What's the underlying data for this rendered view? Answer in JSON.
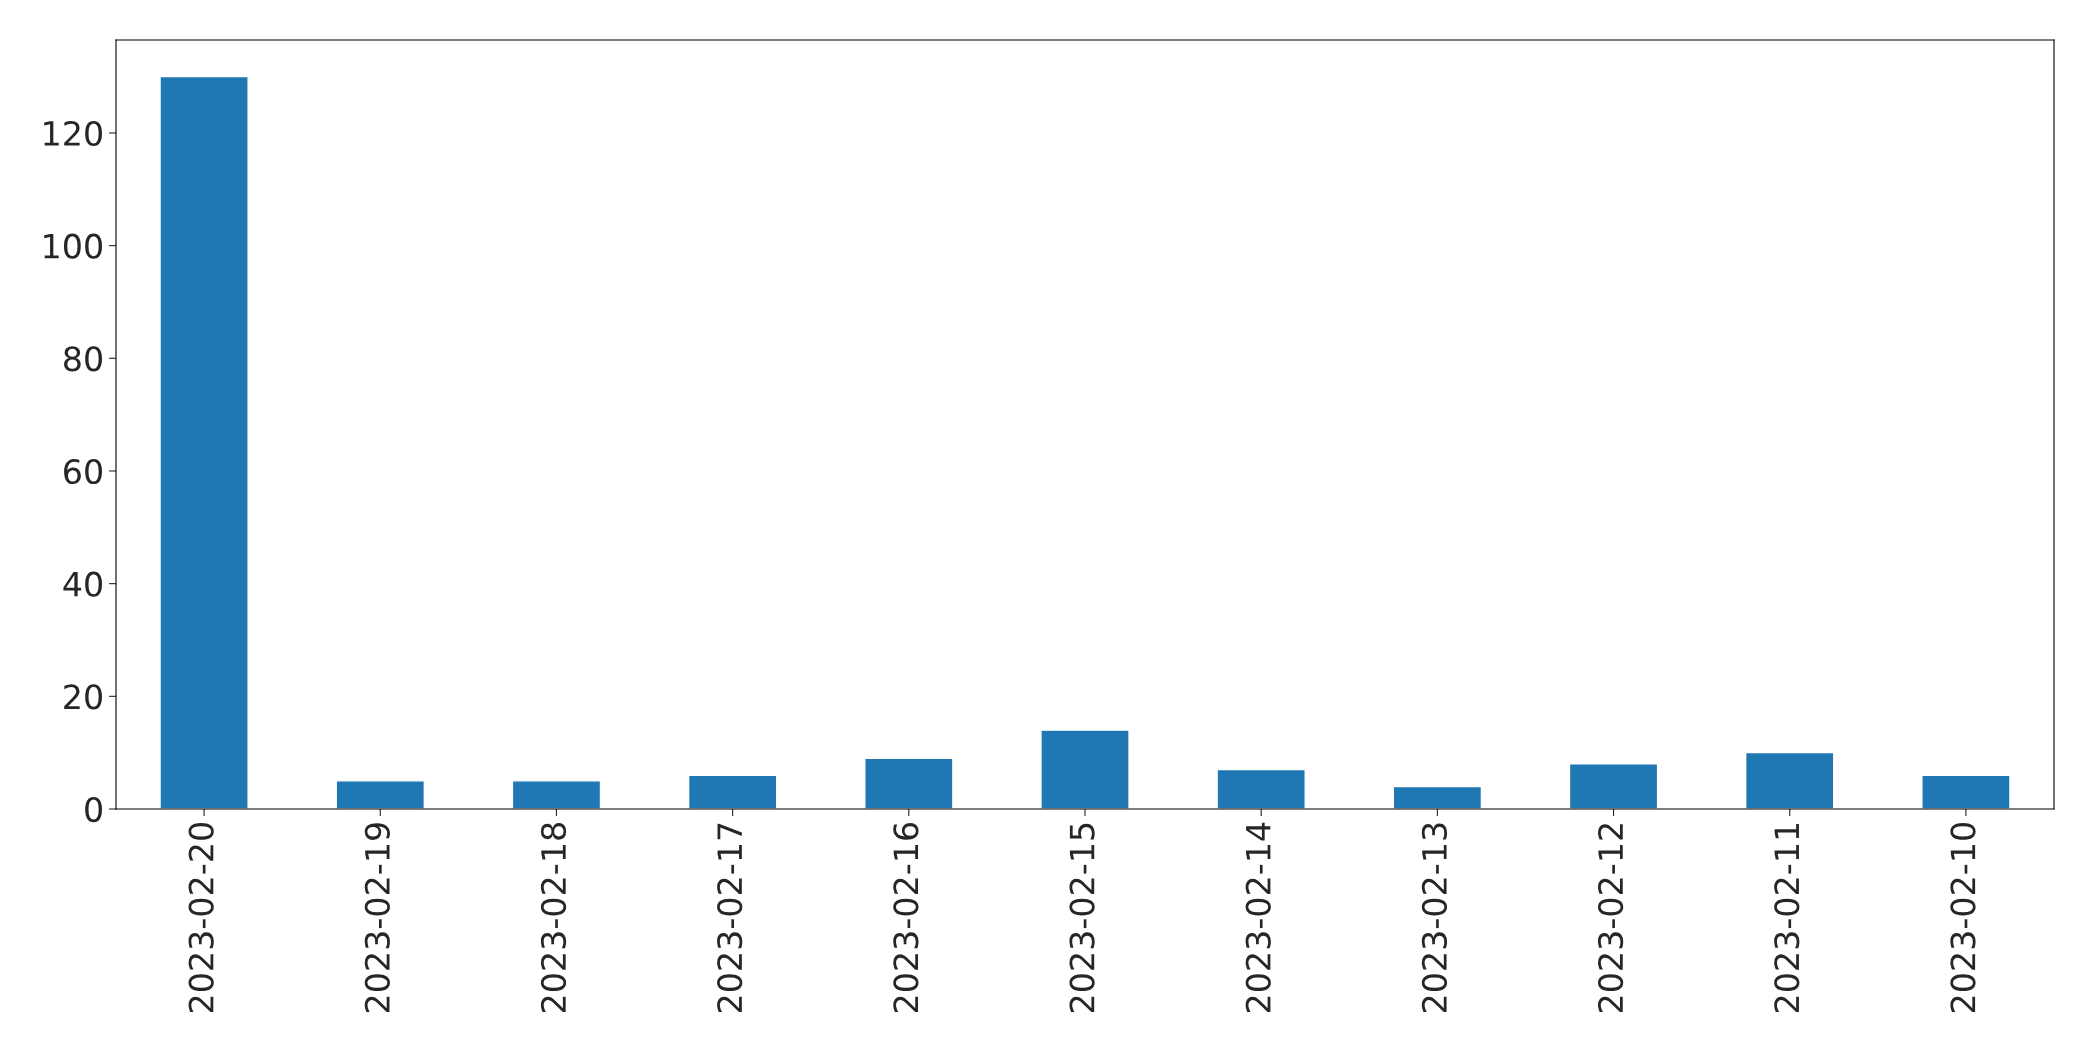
{
  "chart_data": {
    "type": "bar",
    "categories": [
      "2023-02-20",
      "2023-02-19",
      "2023-02-18",
      "2023-02-17",
      "2023-02-16",
      "2023-02-15",
      "2023-02-14",
      "2023-02-13",
      "2023-02-12",
      "2023-02-11",
      "2023-02-10"
    ],
    "values": [
      130,
      5,
      5,
      6,
      9,
      14,
      7,
      4,
      8,
      10,
      6
    ],
    "color": "#1f77b4",
    "ylim": [
      0,
      136.5
    ],
    "yticks": [
      0,
      20,
      40,
      60,
      80,
      100,
      120
    ],
    "grid": false,
    "legend": false
  }
}
